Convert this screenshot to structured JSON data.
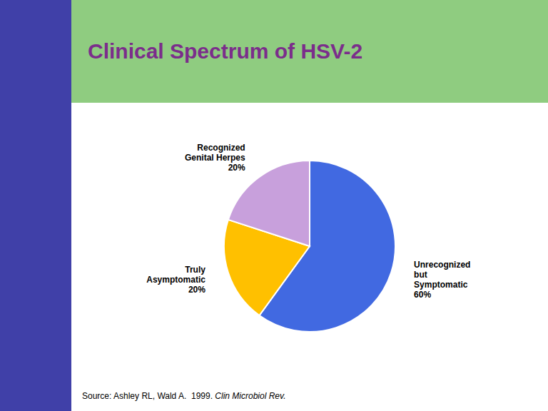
{
  "chart_data": {
    "type": "pie",
    "title": "Clinical Spectrum of HSV-2",
    "categories": [
      "Unrecognized\nbut\nSymptomatic",
      "Truly\nAsymptomatic",
      "Recognized\nGenital Herpes"
    ],
    "values": [
      60,
      20,
      20
    ],
    "value_labels": [
      "60%",
      "20%",
      "20%"
    ],
    "colors": [
      "#4169E1",
      "#FFC000",
      "#C8A0DC"
    ],
    "data_labels": true,
    "annotations": [
      "Source: Ashley RL, Wald A.  1999. ",
      "Clin Microbiol Rev."
    ]
  }
}
